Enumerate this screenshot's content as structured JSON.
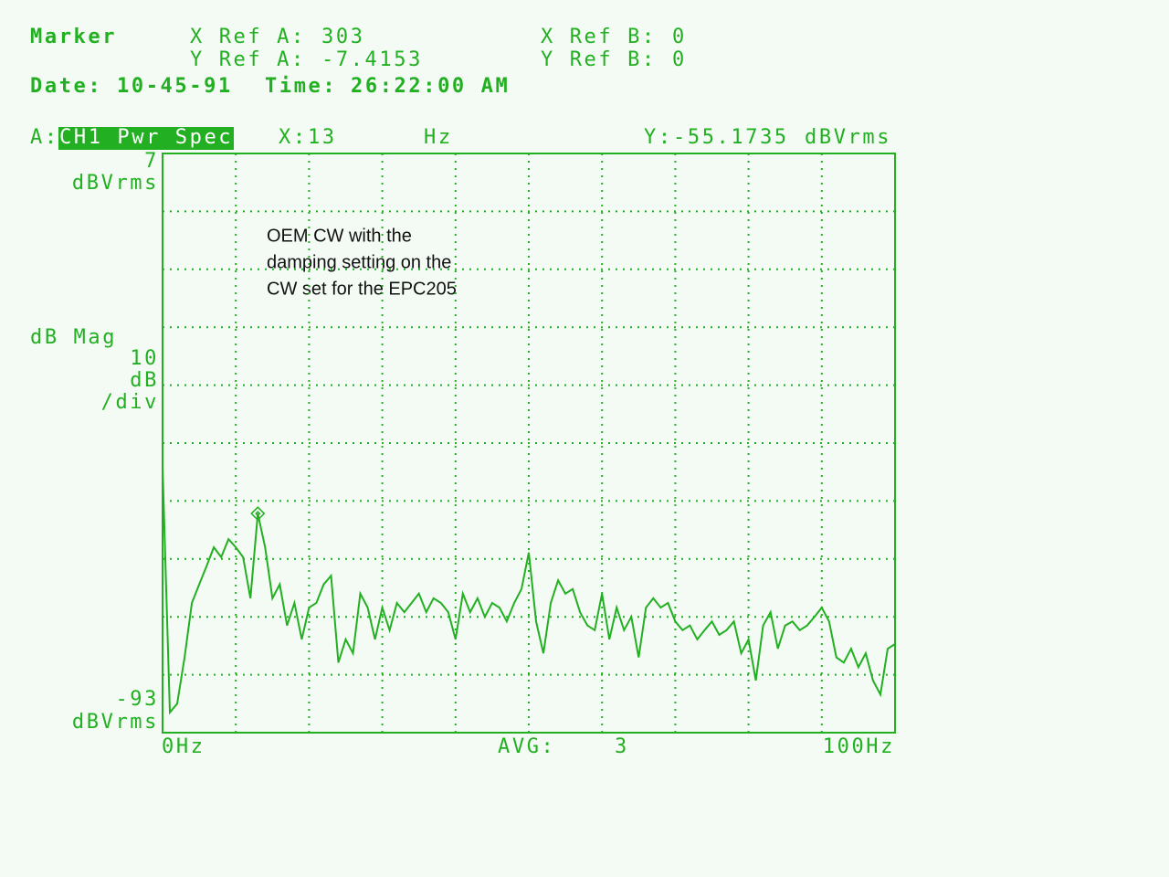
{
  "header": {
    "title": "Marker",
    "x_ref_a_label": "X Ref A:",
    "x_ref_a": 303,
    "y_ref_a_label": "Y Ref A:",
    "y_ref_a": -7.4153,
    "x_ref_b_label": "X Ref B:",
    "x_ref_b": 0,
    "y_ref_b_label": "Y Ref B:",
    "y_ref_b": 0,
    "date_label": "Date:",
    "date": "10-45-91",
    "time_label": "Time:",
    "time": "26:22:00 AM"
  },
  "chart_data": {
    "type": "line",
    "trace_label": "A:",
    "trace_name": "CH1 Pwr Spec",
    "marker": {
      "x_label": "X:",
      "x": 13,
      "x_unit": "Hz",
      "y_label": "Y:",
      "y": -55.1735,
      "y_unit": "dBVrms"
    },
    "y_axis_label": "dB Mag",
    "y_per_div": 10,
    "y_div_unit": "dB",
    "y_div_suffix": "/div",
    "y_top_unit": "dBVrms",
    "y_bottom_unit": "dBVrms",
    "ylim": [
      -93,
      7
    ],
    "yticks": [
      -93,
      7
    ],
    "xlim": [
      0,
      100
    ],
    "xticks": [
      {
        "value": 0,
        "label": "0Hz"
      },
      {
        "value": 100,
        "label": "100Hz"
      }
    ],
    "xgrid_step": 10,
    "grid": true,
    "avg_label": "AVG:",
    "avg": 3,
    "annotation": [
      "OEM CW with the",
      "damping setting on the",
      "CW set for the EPC205"
    ],
    "color": "#22b022",
    "x": [
      0,
      1,
      2,
      3,
      4,
      5,
      6,
      7,
      8,
      9,
      10,
      11,
      12,
      13,
      14,
      15,
      16,
      17,
      18,
      19,
      20,
      21,
      22,
      23,
      24,
      25,
      26,
      27,
      28,
      29,
      30,
      31,
      32,
      33,
      34,
      35,
      36,
      37,
      38,
      39,
      40,
      41,
      42,
      43,
      44,
      45,
      46,
      47,
      48,
      49,
      50,
      51,
      52,
      53,
      54,
      55,
      56,
      57,
      58,
      59,
      60,
      61,
      62,
      63,
      64,
      65,
      66,
      67,
      68,
      69,
      70,
      71,
      72,
      73,
      74,
      75,
      76,
      77,
      78,
      79,
      80,
      81,
      82,
      83,
      84,
      85,
      86,
      87,
      88,
      89,
      90,
      91,
      92,
      93,
      94,
      95,
      96,
      97,
      98,
      99,
      100
    ],
    "values": [
      -47,
      -89.5,
      -88,
      -80,
      -70.6,
      -67.4,
      -64.3,
      -61,
      -62.7,
      -59.6,
      -61,
      -62.7,
      -69.8,
      -55.2,
      -61,
      -69.8,
      -67.4,
      -74.5,
      -70.6,
      -76.9,
      -71.4,
      -70.6,
      -67.4,
      -65.9,
      -80.9,
      -76.9,
      -79.3,
      -69,
      -71.4,
      -76.9,
      -71.4,
      -75.3,
      -70.6,
      -72.2,
      -70.6,
      -69,
      -72.2,
      -69.8,
      -70.6,
      -72.2,
      -76.9,
      -69,
      -72.2,
      -69.8,
      -73,
      -70.6,
      -71.4,
      -73.8,
      -70.6,
      -68.2,
      -61.9,
      -73.8,
      -79.3,
      -70.6,
      -66.7,
      -69,
      -68.2,
      -72.2,
      -74.5,
      -75.3,
      -69,
      -76.9,
      -71.4,
      -75.3,
      -73,
      -80,
      -71.4,
      -69.8,
      -71.4,
      -70.6,
      -73.8,
      -75.3,
      -74.5,
      -76.9,
      -75.3,
      -73.8,
      -76.1,
      -75.3,
      -73.8,
      -79.3,
      -76.9,
      -84,
      -74.5,
      -72.2,
      -78.5,
      -74.5,
      -73.8,
      -75.3,
      -74.5,
      -73,
      -71.4,
      -73.8,
      -80,
      -80.9,
      -78.5,
      -81.7,
      -79.3,
      -84,
      -86.4,
      -78.5,
      -77.7
    ]
  }
}
